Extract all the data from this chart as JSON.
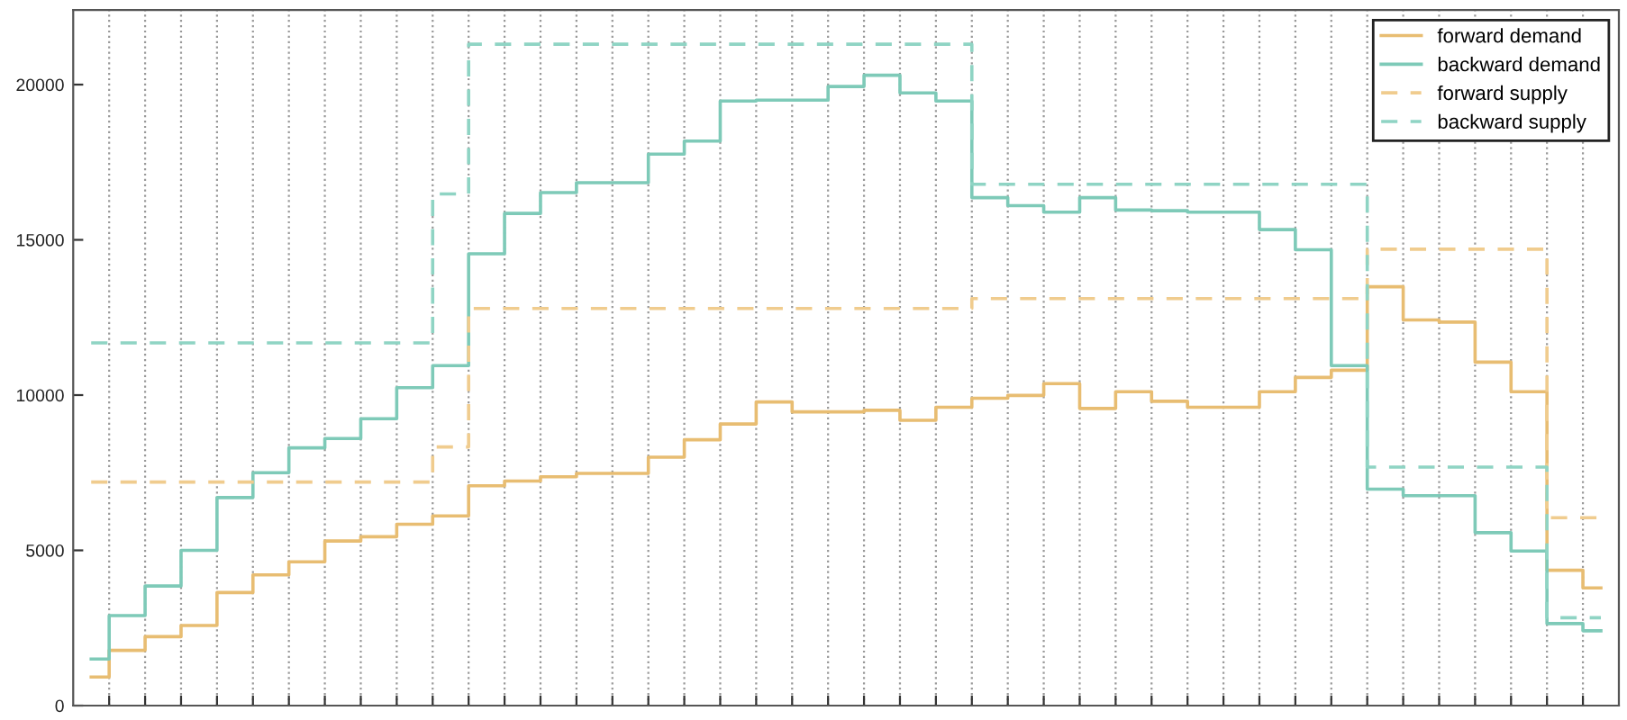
{
  "chart_data": {
    "type": "step",
    "categories": [
      null,
      null,
      null,
      null,
      null,
      null,
      null,
      null,
      null,
      null,
      null,
      null,
      null,
      null,
      null,
      null,
      null,
      null,
      null,
      null,
      null,
      null,
      null,
      null,
      null,
      null,
      null,
      null,
      null,
      null,
      null,
      null,
      null,
      null,
      null,
      null,
      null,
      null,
      null,
      null,
      null,
      null,
      null
    ],
    "ylim": [
      0,
      22400
    ],
    "yticks": [
      0,
      5000,
      10000,
      15000,
      20000
    ],
    "grid": "x",
    "legend": "top right",
    "series": [
      {
        "name": "forward demand",
        "color": "#e8bd72",
        "line_style": "solid",
        "values": [
          920,
          1780,
          2220,
          2580,
          3640,
          4210,
          4630,
          5300,
          5440,
          5840,
          6110,
          7080,
          7230,
          7370,
          7480,
          7480,
          8000,
          8560,
          9070,
          9780,
          9460,
          9460,
          9510,
          9190,
          9610,
          9900,
          9990,
          10370,
          9570,
          10110,
          9800,
          9610,
          9610,
          10110,
          10570,
          10800,
          13490,
          12420,
          12350,
          11060,
          10110,
          4360,
          3790
        ]
      },
      {
        "name": "backward demand",
        "color": "#7ecab8",
        "line_style": "solid",
        "values": [
          1500,
          2900,
          3850,
          5000,
          6700,
          7500,
          8300,
          8600,
          9240,
          10240,
          10950,
          14550,
          15850,
          16520,
          16840,
          16840,
          17760,
          18180,
          19470,
          19500,
          19500,
          19940,
          20300,
          19730,
          19470,
          16360,
          16100,
          15890,
          16360,
          15960,
          15940,
          15890,
          15890,
          15330,
          14680,
          10950,
          6970,
          6760,
          6760,
          5570,
          4980,
          2640,
          2410
        ]
      },
      {
        "name": "forward supply",
        "color": "#f0cc8e",
        "line_style": "dashed",
        "values": [
          7200,
          7200,
          7200,
          7200,
          7200,
          7200,
          7200,
          7200,
          7200,
          7200,
          8330,
          12790,
          12790,
          12790,
          12790,
          12790,
          12790,
          12790,
          12790,
          12790,
          12790,
          12790,
          12790,
          12790,
          12790,
          13110,
          13110,
          13110,
          13110,
          13110,
          13110,
          13110,
          13110,
          13110,
          13110,
          13110,
          14700,
          14700,
          14700,
          14700,
          14700,
          6050,
          6050
        ]
      },
      {
        "name": "backward supply",
        "color": "#8fd4c4",
        "line_style": "dashed",
        "values": [
          11680,
          11680,
          11680,
          11680,
          11680,
          11680,
          11680,
          11680,
          11680,
          11680,
          16480,
          21300,
          21300,
          21300,
          21300,
          21300,
          21300,
          21300,
          21300,
          21300,
          21300,
          21300,
          21300,
          21300,
          21300,
          16790,
          16790,
          16790,
          16790,
          16790,
          16790,
          16790,
          16790,
          16790,
          16790,
          16790,
          7680,
          7680,
          7680,
          7680,
          7680,
          2830,
          2830
        ]
      }
    ]
  }
}
